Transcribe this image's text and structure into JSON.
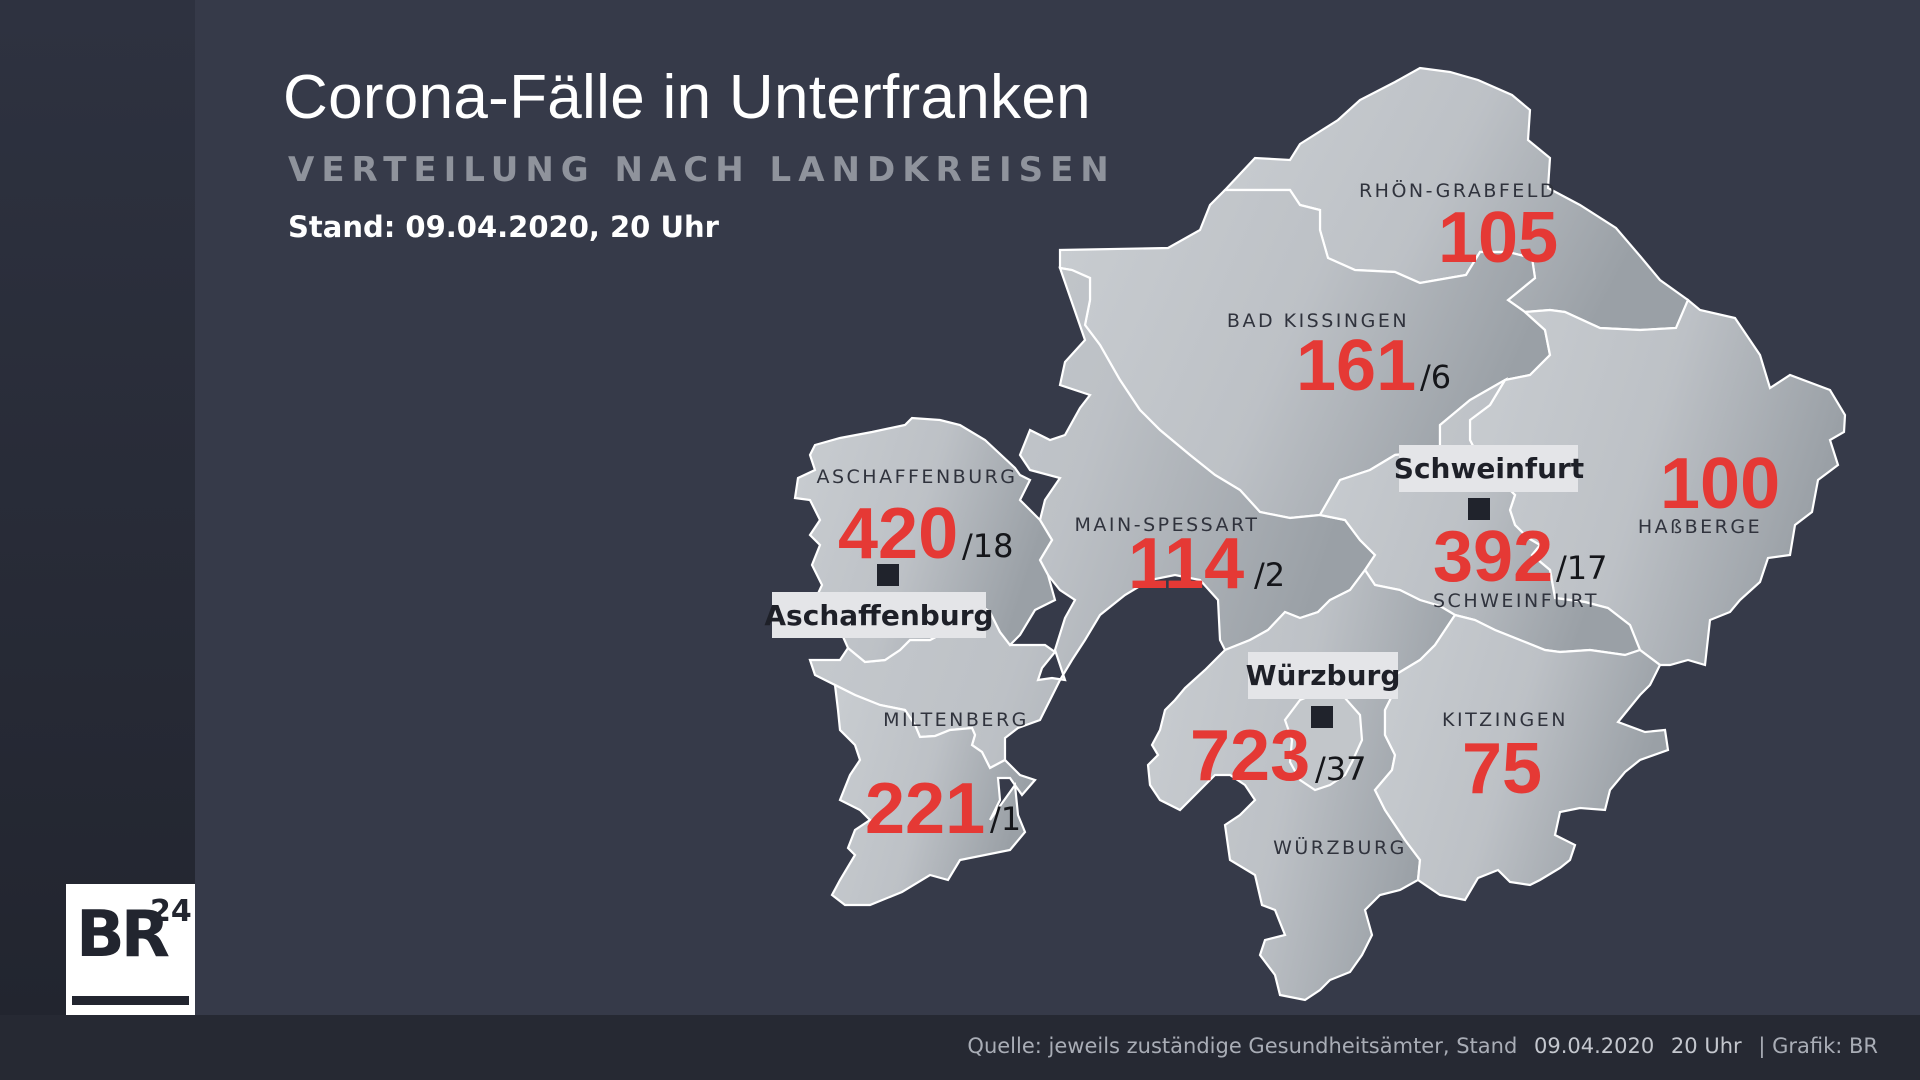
{
  "header": {
    "title": "Corona-Fälle in Unterfranken",
    "subtitle": "VERTEILUNG NACH LANDKREISEN",
    "stand": "Stand: 09.04.2020, 20 Uhr"
  },
  "colors": {
    "background": "#363a49",
    "case_number": "#e53935",
    "map_region": "#c3c7cb",
    "region_border": "#ffffff"
  },
  "districts": [
    {
      "name": "RHÖN-GRABFELD",
      "cases": "105",
      "deaths": ""
    },
    {
      "name": "BAD KISSINGEN",
      "cases": "161",
      "deaths": "/6"
    },
    {
      "name": "ASCHAFFENBURG",
      "cases": "420",
      "deaths": "/18"
    },
    {
      "name": "MAIN-SPESSART",
      "cases": "114",
      "deaths": "/2"
    },
    {
      "name": "SCHWEINFURT",
      "cases": "392",
      "deaths": "/17"
    },
    {
      "name": "HAßBERGE",
      "cases": "100",
      "deaths": ""
    },
    {
      "name": "MILTENBERG",
      "cases": "221",
      "deaths": "/1"
    },
    {
      "name": "WÜRZBURG",
      "cases": "723",
      "deaths": "/37"
    },
    {
      "name": "KITZINGEN",
      "cases": "75",
      "deaths": ""
    }
  ],
  "cities": [
    "Schweinfurt",
    "Aschaffenburg",
    "Würzburg"
  ],
  "footer": {
    "source": "Quelle: jeweils zuständige Gesundheitsämter, Stand",
    "date": "09.04.2020",
    "time": "20 Uhr",
    "credit": "| Grafik: BR"
  },
  "logo": {
    "brand": "BR",
    "number": "24"
  }
}
